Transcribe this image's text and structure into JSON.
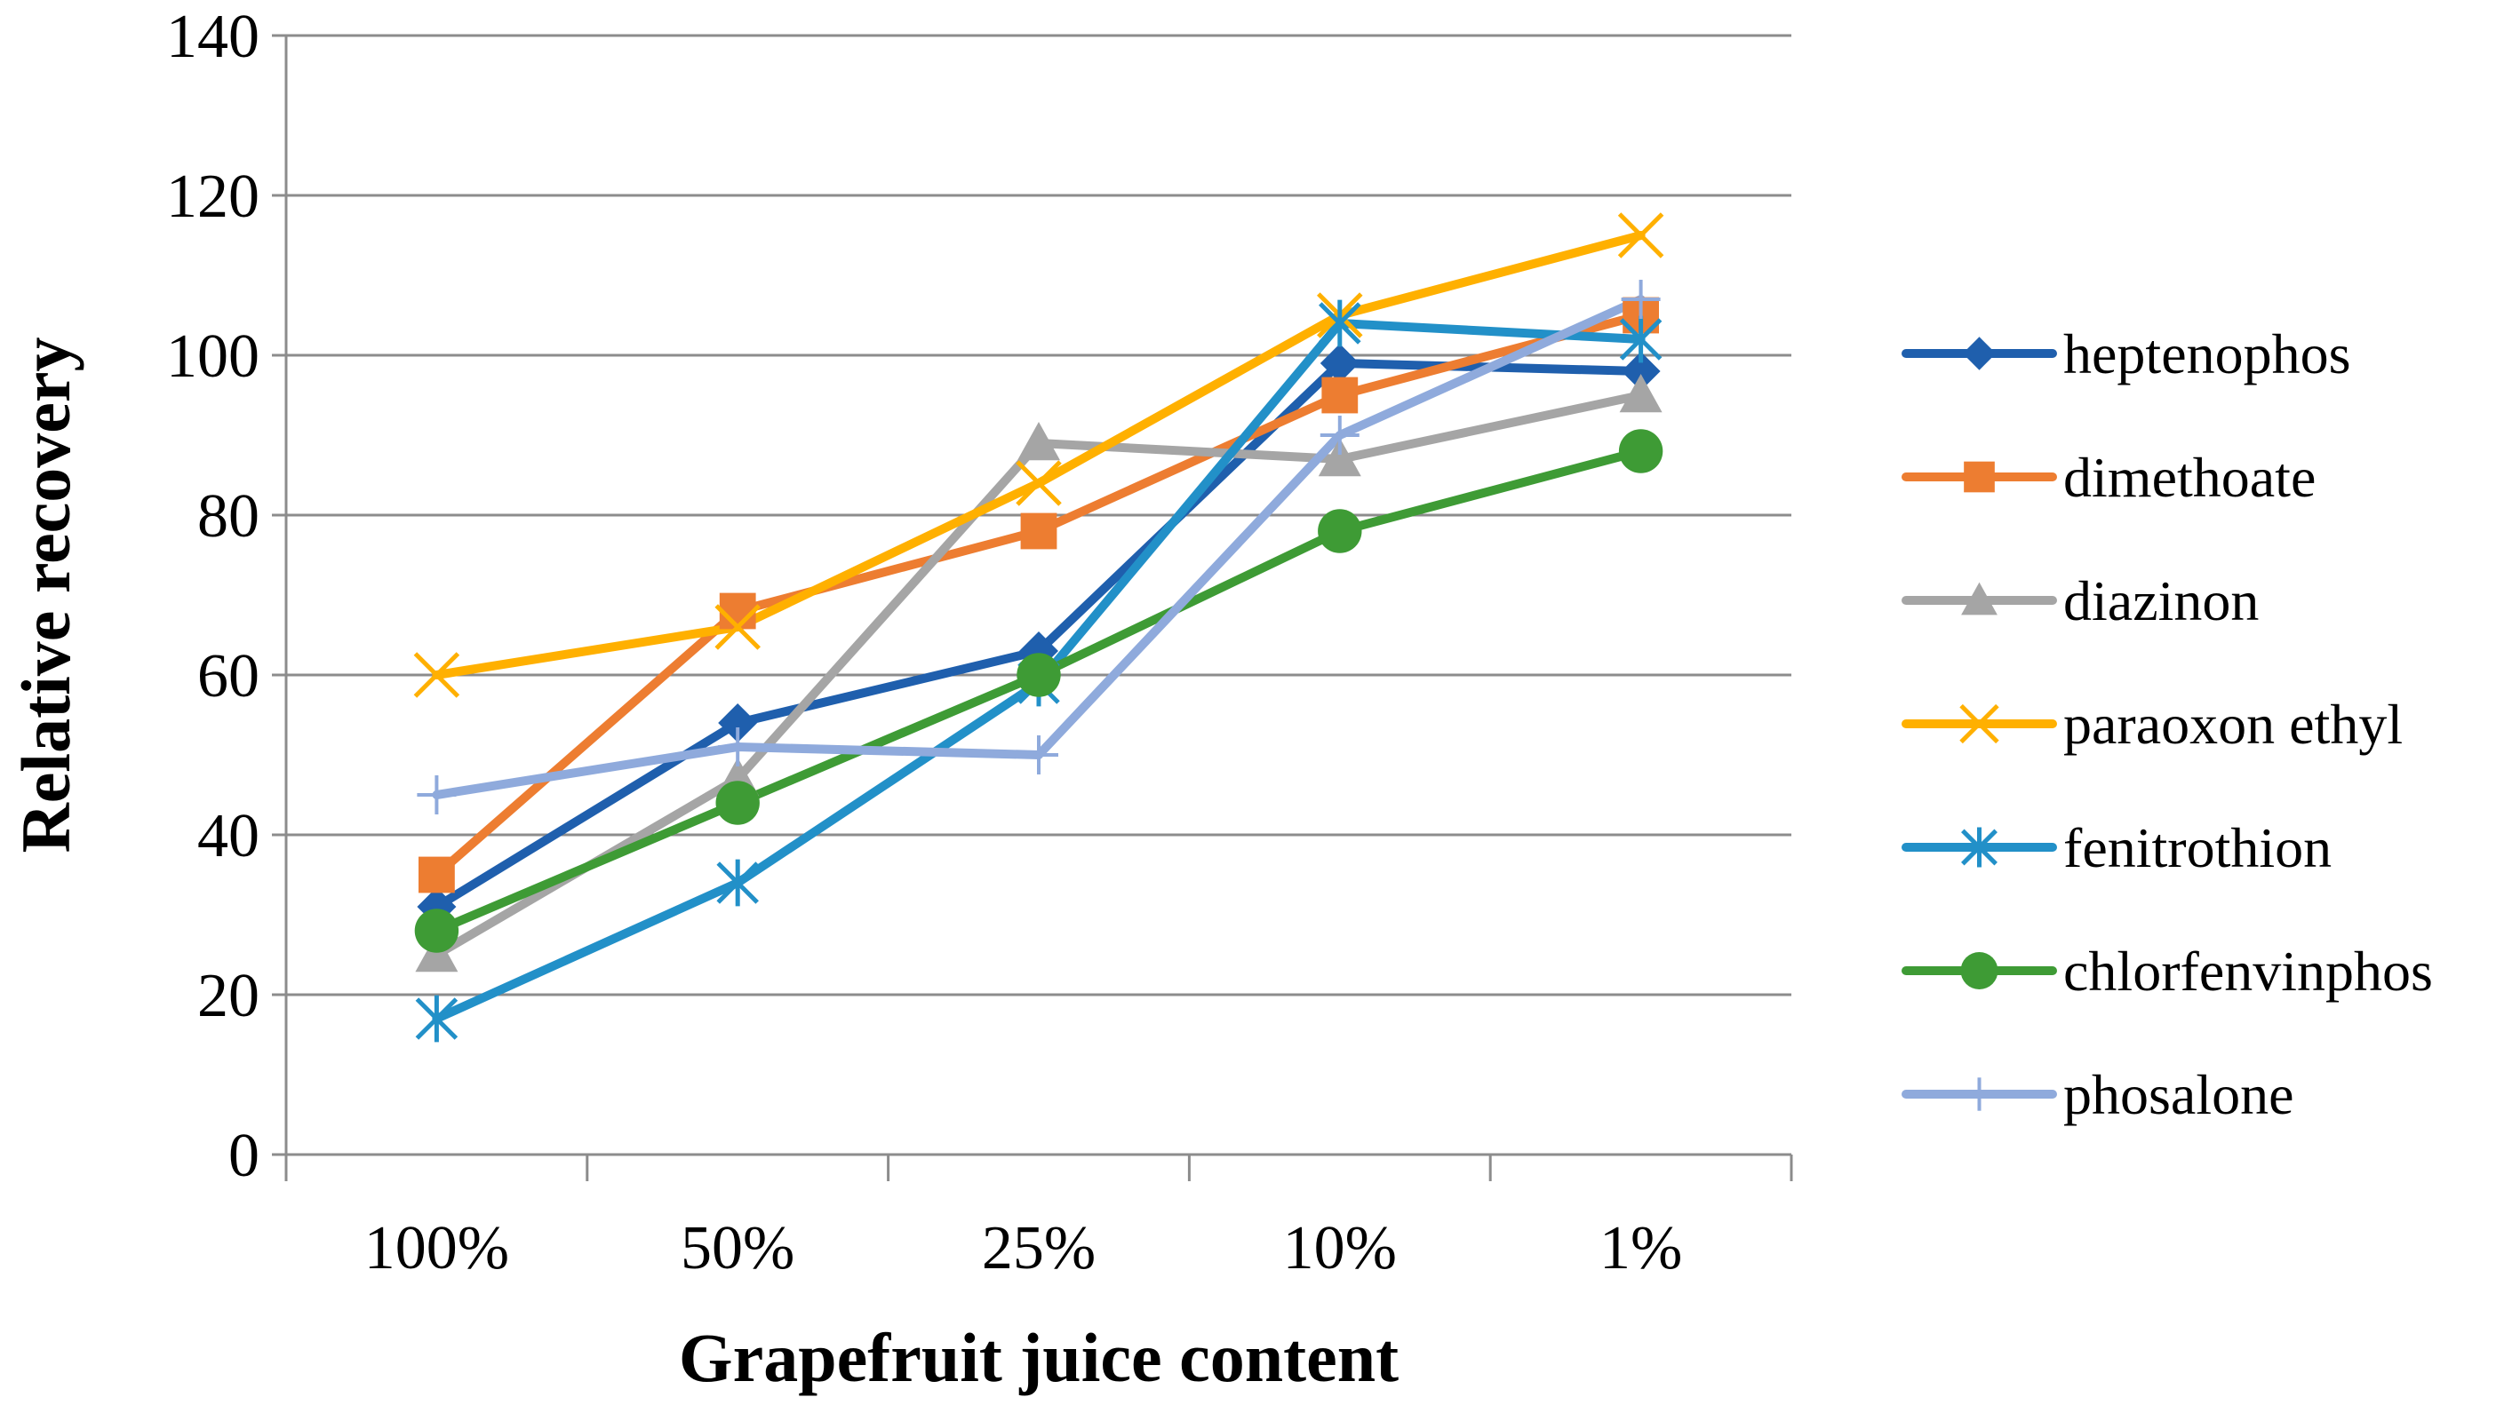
{
  "chart_data": {
    "type": "line",
    "title": "",
    "xlabel": "Grapefruit juice content",
    "ylabel": "Relative recovery",
    "categories": [
      "100%",
      "50%",
      "25%",
      "10%",
      "1%"
    ],
    "ylim": [
      0,
      140
    ],
    "yticks": [
      0,
      20,
      40,
      60,
      80,
      100,
      120,
      140
    ],
    "grid": true,
    "legend_position": "right",
    "series": [
      {
        "name": "heptenophos",
        "color": "#1F5FAD",
        "marker": "diamond",
        "values": [
          31,
          54,
          63,
          99,
          98
        ]
      },
      {
        "name": "dimethoate",
        "color": "#ED7D31",
        "marker": "square",
        "values": [
          35,
          68,
          78,
          95,
          105
        ]
      },
      {
        "name": "diazinon",
        "color": "#A5A5A5",
        "marker": "triangle",
        "values": [
          25,
          47,
          89,
          87,
          95
        ]
      },
      {
        "name": "paraoxon ethyl",
        "color": "#FFB000",
        "marker": "x",
        "values": [
          60,
          66,
          84,
          105,
          115
        ]
      },
      {
        "name": "fenitrothion",
        "color": "#2290C8",
        "marker": "star",
        "values": [
          17,
          34,
          59,
          104,
          102
        ]
      },
      {
        "name": "chlorfenvinphos",
        "color": "#3E9B35",
        "marker": "circle",
        "values": [
          28,
          44,
          60,
          78,
          88
        ]
      },
      {
        "name": "phosalone",
        "color": "#8FAADC",
        "marker": "plus",
        "values": [
          45,
          51,
          50,
          90,
          107
        ]
      }
    ]
  }
}
